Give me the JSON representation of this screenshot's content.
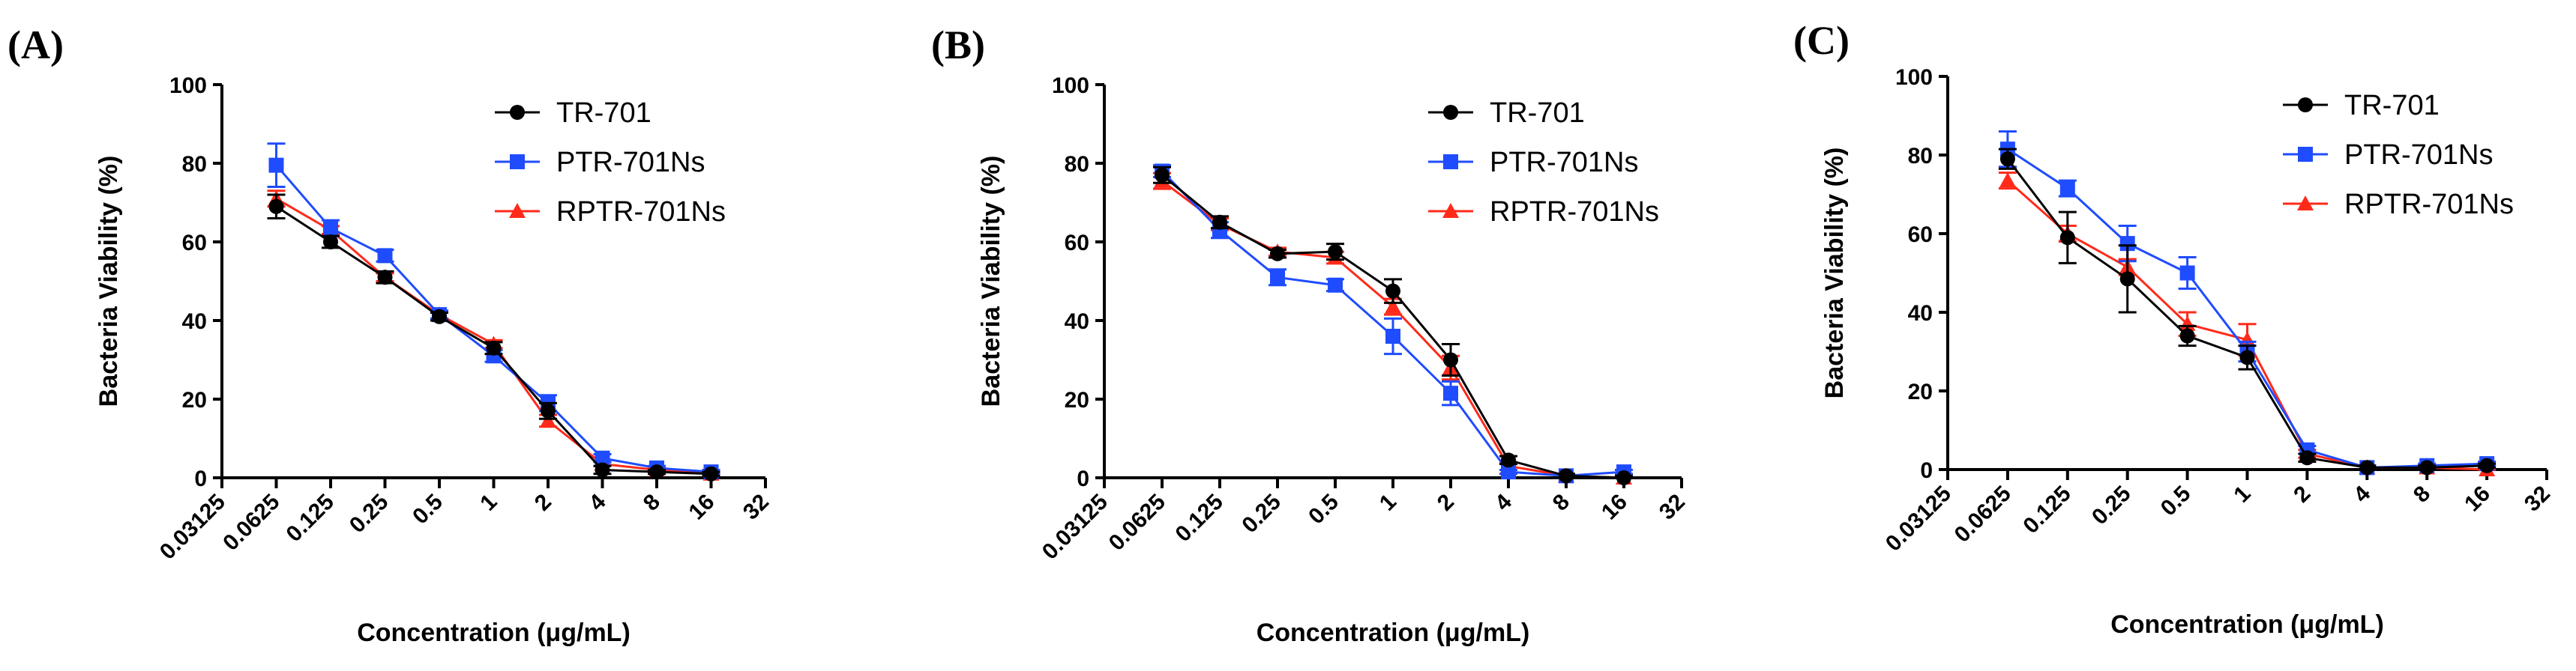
{
  "figure": {
    "x_tick_labels": [
      "0.03125",
      "0.0625",
      "0.125",
      "0.25",
      "0.5",
      "1",
      "2",
      "4",
      "8",
      "16",
      "32"
    ]
  },
  "series_styles": [
    {
      "name": "TR-701",
      "color": "#000000",
      "marker": "circle"
    },
    {
      "name": "PTR-701Ns",
      "color": "#1f4cff",
      "marker": "square"
    },
    {
      "name": "RPTR-701Ns",
      "color": "#ff2a1a",
      "marker": "triangle"
    }
  ],
  "chart_data": [
    {
      "type": "line",
      "panel_label": "(A)",
      "xlabel": "Concentration (μg/mL)",
      "ylabel": "Bacteria Viability (%)",
      "x_scale": "log2",
      "x": [
        0.0625,
        0.125,
        0.25,
        0.5,
        1,
        2,
        4,
        8,
        16
      ],
      "xlim": [
        0.03125,
        32
      ],
      "ylim": [
        0,
        100
      ],
      "y_ticks": [
        0,
        20,
        40,
        60,
        80,
        100
      ],
      "legend_position": "top-right",
      "series": [
        {
          "name": "TR-701",
          "values": [
            69,
            60,
            51,
            41,
            33,
            17,
            2,
            1.5,
            1
          ],
          "errors": [
            3,
            1.5,
            1.5,
            1,
            1.5,
            2,
            1,
            0.5,
            0.5
          ]
        },
        {
          "name": "PTR-701Ns",
          "values": [
            79.5,
            63.5,
            56.5,
            41.5,
            31,
            19,
            5,
            2.5,
            1.5
          ],
          "errors": [
            5.5,
            2,
            1.5,
            1,
            1.5,
            2,
            1,
            0.5,
            0.5
          ]
        },
        {
          "name": "RPTR-701Ns",
          "values": [
            71,
            63,
            51,
            41.5,
            34,
            14.5,
            3.5,
            2,
            1
          ],
          "errors": [
            2,
            1,
            1,
            1,
            1,
            1.5,
            0.5,
            0.5,
            0.5
          ]
        }
      ]
    },
    {
      "type": "line",
      "panel_label": "(B)",
      "xlabel": "Concentration (μg/mL)",
      "ylabel": "Bacteria Viability (%)",
      "x_scale": "log2",
      "x": [
        0.0625,
        0.125,
        0.25,
        0.5,
        1,
        2,
        4,
        8,
        16
      ],
      "xlim": [
        0.03125,
        32
      ],
      "ylim": [
        0,
        100
      ],
      "y_ticks": [
        0,
        20,
        40,
        60,
        80,
        100
      ],
      "legend_position": "top-right",
      "series": [
        {
          "name": "TR-701",
          "values": [
            77,
            65,
            57,
            57.5,
            47.5,
            30,
            4.5,
            0.5,
            0
          ],
          "errors": [
            2,
            1.5,
            1,
            2,
            3,
            4,
            1,
            0.5,
            0.5
          ]
        },
        {
          "name": "PTR-701Ns",
          "values": [
            78,
            63,
            51,
            49,
            36,
            21.5,
            1.5,
            0.5,
            1.5
          ],
          "errors": [
            1.5,
            2,
            2,
            1.5,
            4.5,
            3,
            0.5,
            0.5,
            0.5
          ]
        },
        {
          "name": "RPTR-701Ns",
          "values": [
            75.5,
            64.5,
            57.5,
            56,
            43.5,
            28,
            3,
            0.5,
            0
          ],
          "errors": [
            2,
            1.5,
            1,
            1.5,
            2,
            3,
            1,
            0.5,
            0.5
          ]
        }
      ]
    },
    {
      "type": "line",
      "panel_label": "(C)",
      "xlabel": "Concentration (μg/mL)",
      "ylabel": "Bacteria Viability (%)",
      "x_scale": "log2",
      "x": [
        0.0625,
        0.125,
        0.25,
        0.5,
        1,
        2,
        4,
        8,
        16
      ],
      "xlim": [
        0.03125,
        32
      ],
      "ylim": [
        0,
        100
      ],
      "y_ticks": [
        0,
        20,
        40,
        60,
        80,
        100
      ],
      "legend_position": "top-right",
      "series": [
        {
          "name": "TR-701",
          "values": [
            79,
            59,
            48.5,
            34,
            28.5,
            3,
            0.5,
            0.5,
            1
          ],
          "errors": [
            2.5,
            6.5,
            8.5,
            2.5,
            3,
            1,
            0.5,
            0.5,
            0.5
          ]
        },
        {
          "name": "PTR-701Ns",
          "values": [
            81.5,
            71.5,
            57.5,
            50,
            30,
            5,
            0.5,
            1,
            1.5
          ],
          "errors": [
            4.5,
            2,
            4.5,
            4,
            2.5,
            1,
            0.5,
            0.5,
            0.5
          ]
        },
        {
          "name": "RPTR-701Ns",
          "values": [
            73.5,
            60,
            51.5,
            37,
            33,
            4,
            0.5,
            0.5,
            0
          ],
          "errors": [
            2,
            2,
            2,
            3,
            4,
            1,
            0.5,
            0.5,
            0.5
          ]
        }
      ]
    }
  ]
}
